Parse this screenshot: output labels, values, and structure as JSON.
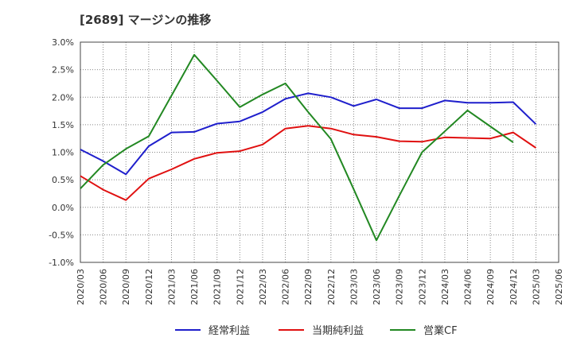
{
  "chart_data": {
    "type": "line",
    "title": "[2689]  マージンの推移",
    "x": [
      "2020/03",
      "2020/06",
      "2020/09",
      "2020/12",
      "2021/03",
      "2021/06",
      "2021/09",
      "2021/12",
      "2022/03",
      "2022/06",
      "2022/09",
      "2022/12",
      "2023/03",
      "2023/06",
      "2023/09",
      "2023/12",
      "2024/03",
      "2024/06",
      "2024/09",
      "2024/12",
      "2025/03",
      "2025/06"
    ],
    "ylim": [
      -1.0,
      3.0
    ],
    "yticks": [
      "3.0%",
      "2.5%",
      "2.0%",
      "1.5%",
      "1.0%",
      "0.5%",
      "0.0%",
      "-0.5%",
      "-1.0%"
    ],
    "ytick_values": [
      3.0,
      2.5,
      2.0,
      1.5,
      1.0,
      0.5,
      0.0,
      -0.5,
      -1.0
    ],
    "grid": true,
    "legend_position": "bottom",
    "series": [
      {
        "name": "経常利益",
        "color": "#1f1fcc",
        "values": [
          1.05,
          0.84,
          0.6,
          1.11,
          1.36,
          1.37,
          1.52,
          1.56,
          1.73,
          1.97,
          2.07,
          2.0,
          1.84,
          1.96,
          1.8,
          1.8,
          1.94,
          1.9,
          1.9,
          1.91,
          1.51,
          null
        ]
      },
      {
        "name": "当期純利益",
        "color": "#e01010",
        "values": [
          0.57,
          0.32,
          0.13,
          0.52,
          0.69,
          0.88,
          0.99,
          1.02,
          1.14,
          1.43,
          1.48,
          1.43,
          1.32,
          1.28,
          1.2,
          1.19,
          1.27,
          1.26,
          1.25,
          1.36,
          1.08,
          null
        ]
      },
      {
        "name": "営業CF",
        "color": "#228822",
        "values": [
          0.34,
          0.77,
          1.06,
          1.29,
          2.03,
          2.77,
          2.3,
          1.82,
          2.05,
          2.25,
          1.73,
          1.24,
          0.33,
          -0.6,
          0.21,
          1.0,
          1.38,
          1.76,
          1.47,
          1.18,
          null,
          null
        ]
      }
    ]
  }
}
